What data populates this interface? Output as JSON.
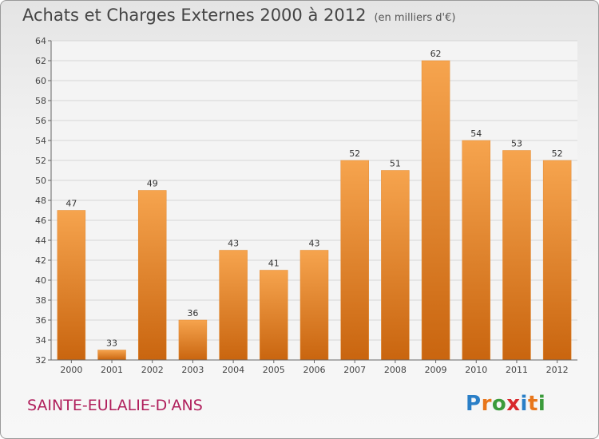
{
  "title": "Achats et Charges Externes 2000 à 2012",
  "unit_note": "(en milliers d'€)",
  "place_name": "SAINTE-EULALIE-D'ANS",
  "logo": {
    "text": "Proxiti",
    "letters": [
      "P",
      "r",
      "o",
      "x",
      "i",
      "t",
      "i"
    ],
    "colors": [
      "#2a7fc7",
      "#e8761b",
      "#3b9b3b",
      "#d8282c",
      "#2a7fc7",
      "#e8761b",
      "#3b9b3b"
    ]
  },
  "colors": {
    "bar_light": "#f6a44e",
    "bar_dark": "#c9650f",
    "title": "#444444",
    "place": "#b01f5c"
  },
  "chart_data": {
    "type": "bar",
    "categories": [
      "2000",
      "2001",
      "2002",
      "2003",
      "2004",
      "2005",
      "2006",
      "2007",
      "2008",
      "2009",
      "2010",
      "2011",
      "2012"
    ],
    "values": [
      47,
      33,
      49,
      36,
      43,
      41,
      43,
      52,
      51,
      62,
      54,
      53,
      52
    ],
    "ylim": [
      32,
      64
    ],
    "yticks": [
      32,
      34,
      36,
      38,
      40,
      42,
      44,
      46,
      48,
      50,
      52,
      54,
      56,
      58,
      60,
      62,
      64
    ],
    "grid": true
  }
}
